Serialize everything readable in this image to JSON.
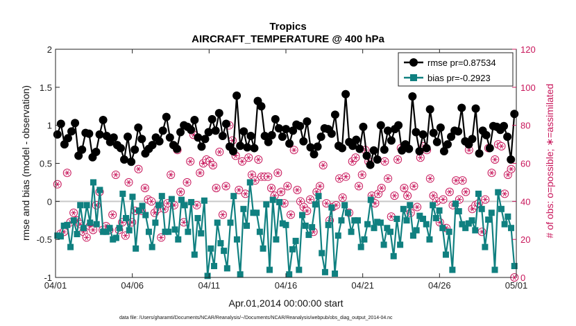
{
  "chart_data": {
    "type": "line",
    "title": "Tropics",
    "subtitle": "AIRCRAFT_TEMPERATURE @ 400 hPa",
    "xlabel": "Apr.01,2014 00:00:00 start",
    "ylabel_left": "rmse and bias (model - observation)",
    "ylabel_right": "# of obs: o=possible; ∗=assimilated",
    "footnote": "data file: /Users/gharamti/Documents/NCAR/Reanalysis/~/Documents/NCAR/Reanalysis/webpub/obs_diag_output_2014-04.nc",
    "x_ticks": [
      "04/01",
      "04/06",
      "04/11",
      "04/16",
      "04/21",
      "04/26",
      "05/01"
    ],
    "xlim_days": [
      0,
      30
    ],
    "ylim_left": [
      -1,
      2
    ],
    "yticks_left": [
      "-1",
      "-0.5",
      "0",
      "0.5",
      "1",
      "1.5",
      "2"
    ],
    "ylim_right": [
      0,
      120
    ],
    "yticks_right": [
      "0",
      "20",
      "40",
      "60",
      "80",
      "100",
      "120"
    ],
    "x_step_days": 0.25,
    "x_start_day": 0.125,
    "colors": {
      "rmse": "#000000",
      "bias": "#108080",
      "obs": "#c8155a",
      "zero_line": "#c8c8c8"
    },
    "series": [
      {
        "name": "rmse pr=0.87534",
        "marker": "circle",
        "axis": "left",
        "values": [
          0.88,
          1.02,
          0.75,
          0.83,
          0.92,
          1.03,
          0.6,
          0.68,
          0.9,
          0.89,
          0.58,
          0.65,
          0.88,
          1.07,
          0.86,
          0.78,
          0.84,
          0.74,
          0.7,
          0.55,
          0.85,
          0.52,
          0.68,
          0.97,
          0.82,
          0.63,
          0.69,
          0.74,
          0.84,
          0.79,
          0.93,
          1.11,
          0.84,
          0.74,
          0.69,
          0.91,
          1.0,
          0.98,
          0.94,
          1.07,
          0.84,
          0.72,
          0.82,
          0.91,
          1.08,
          0.93,
          1.16,
          0.86,
          1.02,
          0.72,
          0.66,
          1.39,
          0.73,
          0.92,
          0.71,
          0.86,
          0.7,
          1.32,
          1.25,
          0.86,
          0.78,
          0.87,
          1.08,
          0.96,
          0.85,
          0.95,
          0.76,
          0.93,
          1.01,
          0.99,
          0.79,
          1.05,
          0.71,
          0.62,
          0.72,
          0.85,
          0.96,
          0.95,
          0.89,
          1.14,
          0.73,
          0.7,
          1.41,
          0.78,
          0.73,
          0.81,
          0.69,
          0.98,
          0.6,
          0.48,
          0.67,
          0.55,
          1.0,
          0.68,
          0.93,
          0.8,
          0.95,
          1.0,
          0.67,
          0.75,
          0.69,
          1.38,
          0.91,
          0.66,
          0.88,
          0.7,
          1.21,
          0.9,
          0.78,
          0.97,
          0.66,
          0.75,
          0.85,
          0.93,
          0.92,
          1.23,
          0.79,
          0.75,
          0.82,
          1.22,
          0.63,
          0.93,
          0.87,
          0.7,
          0.99,
          0.98,
          0.94,
          0.99,
          0.85,
          0.55,
          1.15
        ],
        "first_x_offset": 0
      },
      {
        "name": "bias pr=-0.2923",
        "marker": "square",
        "axis": "left",
        "values": [
          -0.45,
          -0.46,
          -0.32,
          -0.31,
          -0.6,
          -0.25,
          -0.43,
          -0.05,
          -0.35,
          -0.05,
          -0.28,
          0.25,
          -0.3,
          0.15,
          -0.4,
          -0.4,
          -0.35,
          -0.5,
          -0.48,
          -0.35,
          0.1,
          -0.22,
          -0.38,
          0.06,
          -0.62,
          -0.12,
          -0.06,
          -0.18,
          -0.4,
          -0.6,
          -0.28,
          -0.05,
          0.07,
          -0.4,
          -0.4,
          0.03,
          -0.37,
          -0.5,
          0.02,
          -0.05,
          -0.4,
          -0.01,
          -0.7,
          -0.22,
          -0.42,
          0.01,
          -0.98,
          -0.62,
          -0.85,
          -0.28,
          -0.55,
          -0.65,
          -0.88,
          -0.28,
          0.07,
          -0.5,
          -0.96,
          -0.1,
          -0.32,
          0.25,
          -0.15,
          -0.15,
          -0.4,
          -0.62,
          -0.04,
          -0.9,
          0.02,
          -0.5,
          -0.01,
          -0.29,
          -0.31,
          -0.96,
          -0.63,
          -0.52,
          -0.9,
          -0.18,
          -0.32,
          -0.44,
          -0.34,
          -0.04,
          0.07,
          -0.68,
          -0.93,
          -0.31,
          -0.08,
          -0.95,
          -0.45,
          -0.25,
          -0.05,
          -0.15,
          -0.4,
          -0.25,
          -0.25,
          -0.6,
          -0.5,
          -0.3,
          0.02,
          -0.35,
          -0.27,
          -0.28,
          -0.57,
          -0.35,
          -0.4,
          -0.72,
          -0.23,
          -0.57,
          -0.1,
          -0.25,
          -0.05,
          -0.45,
          -0.38,
          -0.19,
          -0.23,
          -0.3,
          -0.5,
          -0.05,
          -0.22,
          -0.12,
          -0.35,
          -0.7,
          -0.4,
          -0.9,
          -0.03,
          -0.13,
          -0.3,
          -0.35,
          -0.29,
          -0.25,
          -0.38,
          0.1,
          -0.1,
          -0.6,
          -0.24,
          -0.15,
          -0.9,
          0.12,
          -0.1,
          -0.3,
          -0.2,
          -0.35,
          -0.85
        ],
        "first_x_offset": 0
      },
      {
        "name": "obs possible / assimilated",
        "marker": "circle-asterisk",
        "axis": "right",
        "values": [
          49,
          23,
          24,
          55,
          29,
          34,
          30,
          28,
          24,
          21,
          27,
          25,
          38,
          45,
          25,
          27,
          25,
          33,
          54,
          25,
          29,
          22,
          50,
          29,
          35,
          57,
          35,
          47,
          41,
          40,
          34,
          36,
          21,
          36,
          39,
          54,
          38,
          67,
          45,
          29,
          50,
          61,
          75,
          38,
          55,
          60,
          62,
          61,
          59,
          47,
          66,
          33,
          48,
          80,
          72,
          64,
          46,
          61,
          44,
          63,
          54,
          51,
          62,
          53,
          53,
          53,
          47,
          43,
          55,
          45,
          39,
          48,
          33,
          67,
          46,
          40,
          37,
          35,
          41,
          24,
          45,
          48,
          59,
          39,
          30,
          37,
          38,
          52,
          42,
          53,
          34,
          61,
          63,
          48,
          54,
          67,
          61,
          43,
          39,
          44,
          47,
          61,
          52,
          32,
          43,
          62,
          68,
          47,
          43,
          34,
          48,
          37,
          63,
          69,
          67,
          52,
          43,
          40,
          29,
          41,
          26,
          45,
          38,
          51,
          41,
          51,
          45,
          67,
          36,
          38,
          39,
          24,
          41,
          68,
          55,
          62,
          70,
          69,
          44,
          54,
          57,
          0
        ],
        "first_x_offset": 0
      }
    ]
  }
}
